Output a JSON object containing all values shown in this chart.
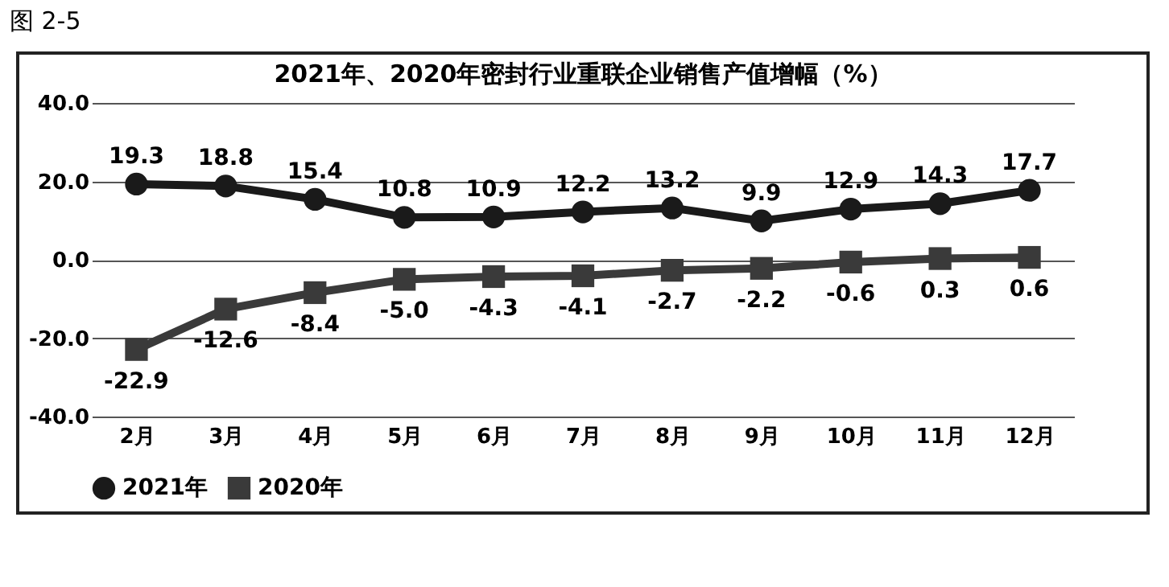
{
  "chart_data": {
    "type": "line",
    "title": "2021年、2020年密封行业重联企业销售产值增幅（%）",
    "annotations": [
      "图 2-5"
    ],
    "categories": [
      "2月",
      "3月",
      "4月",
      "5月",
      "6月",
      "7月",
      "8月",
      "9月",
      "10月",
      "11月",
      "12月"
    ],
    "series": [
      {
        "name": "2021年",
        "color": "#1a1a1a",
        "marker": "circle",
        "values": [
          19.3,
          18.8,
          15.4,
          10.8,
          10.9,
          12.2,
          13.2,
          9.9,
          12.9,
          14.3,
          17.7
        ],
        "value_labels": [
          "19.3",
          "18.8",
          "15.4",
          "10.8",
          "10.9",
          "12.2",
          "13.2",
          "9.9",
          "12.9",
          "14.3",
          "17.7"
        ]
      },
      {
        "name": "2020年",
        "color": "#3a3a3a",
        "marker": "square",
        "values": [
          -22.9,
          -12.6,
          -8.4,
          -5.0,
          -4.3,
          -4.1,
          -2.7,
          -2.2,
          -0.6,
          0.3,
          0.6
        ],
        "value_labels": [
          "-22.9",
          "-12.6",
          "-8.4",
          "-5.0",
          "-4.3",
          "-4.1",
          "-2.7",
          "-2.2",
          "-0.6",
          "0.3",
          "0.6"
        ]
      }
    ],
    "ylim": [
      -40,
      40
    ],
    "yticks": [
      {
        "value": -40,
        "label": "-40.0"
      },
      {
        "value": -20,
        "label": "-20.0"
      },
      {
        "value": 0,
        "label": "0.0"
      },
      {
        "value": 20,
        "label": "20.0"
      },
      {
        "value": 40,
        "label": "40.0"
      }
    ],
    "grid": "y",
    "legend": "bottom",
    "line_style": "solid"
  }
}
